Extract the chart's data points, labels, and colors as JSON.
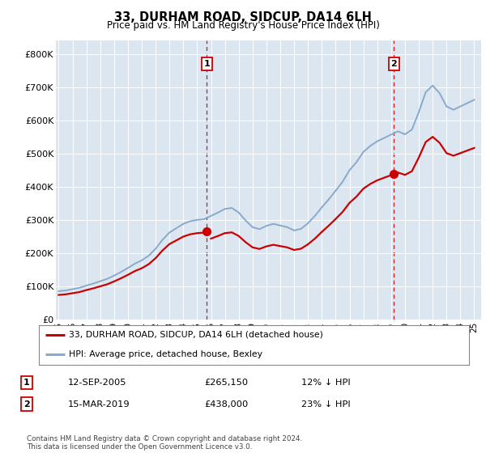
{
  "title": "33, DURHAM ROAD, SIDCUP, DA14 6LH",
  "subtitle": "Price paid vs. HM Land Registry's House Price Index (HPI)",
  "background_color": "#dce9f5",
  "plot_bg_color": "#dce6f0",
  "ylabel_ticks": [
    "£0",
    "£100K",
    "£200K",
    "£300K",
    "£400K",
    "£500K",
    "£600K",
    "£700K",
    "£800K"
  ],
  "ytick_values": [
    0,
    100000,
    200000,
    300000,
    400000,
    500000,
    600000,
    700000,
    800000
  ],
  "ylim": [
    0,
    840000
  ],
  "xlim_start": 1994.8,
  "xlim_end": 2025.5,
  "hpi_years": [
    1995.0,
    1995.5,
    1996.0,
    1996.5,
    1997.0,
    1997.5,
    1998.0,
    1998.5,
    1999.0,
    1999.5,
    2000.0,
    2000.5,
    2001.0,
    2001.5,
    2002.0,
    2002.5,
    2003.0,
    2003.5,
    2004.0,
    2004.5,
    2005.0,
    2005.5,
    2006.0,
    2006.5,
    2007.0,
    2007.5,
    2008.0,
    2008.5,
    2009.0,
    2009.5,
    2010.0,
    2010.5,
    2011.0,
    2011.5,
    2012.0,
    2012.5,
    2013.0,
    2013.5,
    2014.0,
    2014.5,
    2015.0,
    2015.5,
    2016.0,
    2016.5,
    2017.0,
    2017.5,
    2018.0,
    2018.5,
    2019.0,
    2019.5,
    2020.0,
    2020.5,
    2021.0,
    2021.5,
    2022.0,
    2022.5,
    2023.0,
    2023.5,
    2024.0,
    2024.5,
    2025.0
  ],
  "hpi_values": [
    85000,
    87000,
    91000,
    95000,
    102000,
    108000,
    115000,
    122000,
    132000,
    143000,
    155000,
    168000,
    178000,
    192000,
    213000,
    240000,
    262000,
    275000,
    288000,
    296000,
    300000,
    302000,
    312000,
    322000,
    333000,
    336000,
    322000,
    298000,
    278000,
    272000,
    282000,
    288000,
    283000,
    278000,
    268000,
    273000,
    290000,
    312000,
    338000,
    362000,
    388000,
    415000,
    450000,
    474000,
    505000,
    523000,
    537000,
    547000,
    557000,
    567000,
    558000,
    572000,
    625000,
    685000,
    705000,
    682000,
    642000,
    632000,
    642000,
    652000,
    662000
  ],
  "sale_years": [
    2005.7,
    2019.2
  ],
  "sale_prices": [
    265150,
    438000
  ],
  "sale_color": "#cc0000",
  "hpi_color": "#88aacc",
  "vline_color": "#cc0000",
  "legend_entries": [
    "33, DURHAM ROAD, SIDCUP, DA14 6LH (detached house)",
    "HPI: Average price, detached house, Bexley"
  ],
  "table_rows": [
    [
      "1",
      "12-SEP-2005",
      "£265,150",
      "12% ↓ HPI"
    ],
    [
      "2",
      "15-MAR-2019",
      "£438,000",
      "23% ↓ HPI"
    ]
  ],
  "footnote": "Contains HM Land Registry data © Crown copyright and database right 2024.\nThis data is licensed under the Open Government Licence v3.0.",
  "xtick_years": [
    1995,
    1996,
    1997,
    1998,
    1999,
    2000,
    2001,
    2002,
    2003,
    2004,
    2005,
    2006,
    2007,
    2008,
    2009,
    2010,
    2011,
    2012,
    2013,
    2014,
    2015,
    2016,
    2017,
    2018,
    2019,
    2020,
    2021,
    2022,
    2023,
    2024,
    2025
  ]
}
